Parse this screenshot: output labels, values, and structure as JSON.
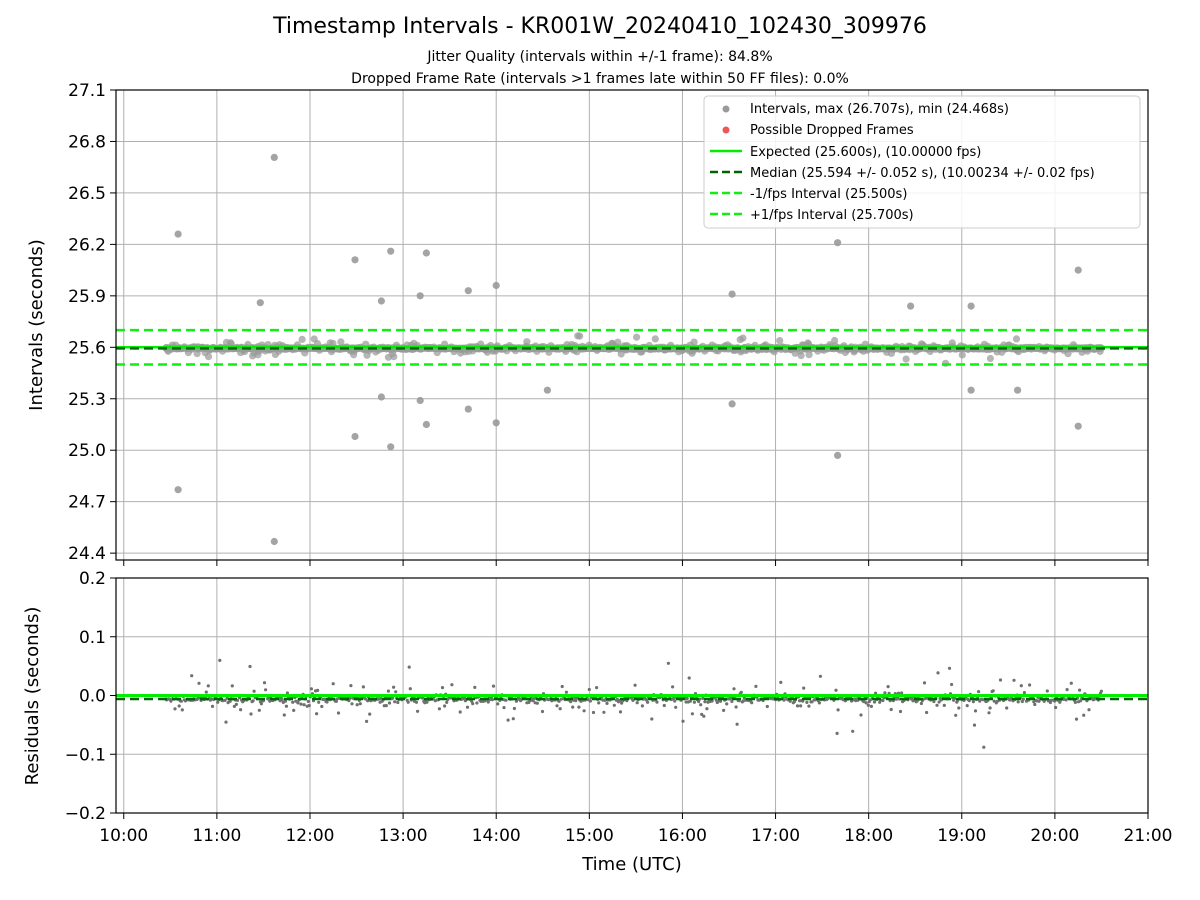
{
  "title": "Timestamp Intervals - KR001W_20240410_102430_309976",
  "subtitle_lines": [
    "Jitter Quality (intervals within +/-1 frame): 84.8%",
    "Dropped Frame Rate (intervals >1 frames late within 50 FF files): 0.0%"
  ],
  "chart_data": [
    {
      "type": "scatter",
      "panel": "intervals",
      "ylabel": "Intervals (seconds)",
      "ylim": [
        24.36,
        27.1
      ],
      "yticks": [
        "24.4",
        "24.7",
        "25.0",
        "25.3",
        "25.6",
        "25.9",
        "26.2",
        "26.5",
        "26.8",
        "27.1"
      ],
      "xlim": [
        "09:55",
        "21:00"
      ],
      "grid": true,
      "legend_position": "top-right",
      "legend": [
        "Intervals, max (26.707s), min (24.468s)",
        "Possible Dropped Frames",
        "Expected (25.600s), (10.00000 fps)",
        "Median (25.594 +/- 0.052 s), (10.00234 +/- 0.02 fps)",
        "-1/fps Interval (25.500s)",
        "+1/fps Interval (25.700s)"
      ],
      "colors": {
        "intervals": "#9a9a9a",
        "dropped": "#ee5555",
        "expected": "#00ee00",
        "median": "#006400",
        "bounds": "#11ee11"
      },
      "reference_lines": {
        "expected": 25.6,
        "median": 25.594,
        "minus_one_fps": 25.5,
        "plus_one_fps": 25.7
      },
      "series": {
        "time_range": [
          "10:27",
          "20:30"
        ],
        "point_count": 1400,
        "center": 25.594,
        "notable_points": [
          {
            "x": "10:35",
            "y": 26.26
          },
          {
            "x": "10:35",
            "y": 24.77
          },
          {
            "x": "11:37",
            "y": 26.707
          },
          {
            "x": "11:37",
            "y": 24.468
          },
          {
            "x": "12:29",
            "y": 26.11
          },
          {
            "x": "12:29",
            "y": 25.08
          },
          {
            "x": "12:52",
            "y": 26.16
          },
          {
            "x": "12:52",
            "y": 25.02
          },
          {
            "x": "13:15",
            "y": 26.15
          },
          {
            "x": "13:15",
            "y": 25.15
          },
          {
            "x": "13:11",
            "y": 25.9
          },
          {
            "x": "11:28",
            "y": 25.86
          },
          {
            "x": "12:46",
            "y": 25.87
          },
          {
            "x": "13:42",
            "y": 25.93
          },
          {
            "x": "14:00",
            "y": 25.96
          },
          {
            "x": "14:00",
            "y": 25.16
          },
          {
            "x": "13:42",
            "y": 25.24
          },
          {
            "x": "16:32",
            "y": 25.91
          },
          {
            "x": "16:32",
            "y": 25.27
          },
          {
            "x": "17:40",
            "y": 26.21
          },
          {
            "x": "17:40",
            "y": 24.97
          },
          {
            "x": "18:27",
            "y": 25.84
          },
          {
            "x": "19:06",
            "y": 25.84
          },
          {
            "x": "19:06",
            "y": 25.35
          },
          {
            "x": "20:15",
            "y": 26.05
          },
          {
            "x": "20:15",
            "y": 25.14
          },
          {
            "x": "12:46",
            "y": 25.31
          },
          {
            "x": "13:11",
            "y": 25.29
          },
          {
            "x": "14:33",
            "y": 25.35
          },
          {
            "x": "19:36",
            "y": 25.35
          }
        ]
      }
    },
    {
      "type": "scatter",
      "panel": "residuals",
      "ylabel": "Residuals (seconds)",
      "xlabel": "Time (UTC)",
      "ylim": [
        -0.2,
        0.2
      ],
      "yticks": [
        "−0.2",
        "−0.1",
        "0.0",
        "0.1",
        "0.2"
      ],
      "xticks": [
        "10:00",
        "11:00",
        "12:00",
        "13:00",
        "14:00",
        "15:00",
        "16:00",
        "17:00",
        "18:00",
        "19:00",
        "20:00",
        "21:00"
      ],
      "xlim": [
        "09:55",
        "21:00"
      ],
      "grid": true,
      "colors": {
        "points": "#707070",
        "expected": "#00ee00",
        "median": "#006400"
      },
      "reference_lines": {
        "expected": 0.0,
        "median": -0.006
      },
      "series": {
        "time_range": [
          "10:27",
          "20:30"
        ],
        "point_count": 900,
        "center": -0.006
      }
    }
  ]
}
